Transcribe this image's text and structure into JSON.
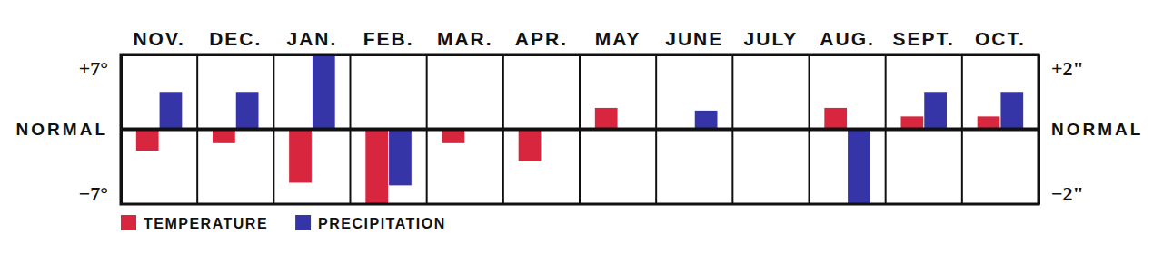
{
  "chart_data": {
    "type": "bar",
    "categories": [
      "NOV.",
      "DEC.",
      "JAN.",
      "FEB.",
      "MAR.",
      "APR.",
      "MAY",
      "JUNE",
      "JULY",
      "AUG.",
      "SEPT.",
      "OCT."
    ],
    "series": [
      {
        "name": "TEMPERATURE",
        "color": "#d7263d",
        "values": [
          -2,
          -1.3,
          -5,
          -7,
          -1.3,
          -3,
          2,
          0,
          0,
          2,
          1.2,
          1.2
        ]
      },
      {
        "name": "PRECIPITATION",
        "color": "#3535a8",
        "axis": "y2",
        "values": [
          1,
          1,
          2,
          -1.5,
          0,
          0,
          0,
          0.5,
          0,
          -2,
          1,
          1
        ]
      }
    ],
    "ylim": [
      -7,
      7
    ],
    "yticks": [
      {
        "value": 7,
        "label": "+7°"
      },
      {
        "value": 0,
        "label": "NORMAL"
      },
      {
        "value": -7,
        "label": "−7°"
      }
    ],
    "y2lim": [
      -2,
      2
    ],
    "y2ticks": [
      {
        "value": 2,
        "label": "+2\""
      },
      {
        "value": 0,
        "label": "NORMAL"
      },
      {
        "value": -2,
        "label": "−2\""
      }
    ],
    "legend": "bottom left"
  }
}
